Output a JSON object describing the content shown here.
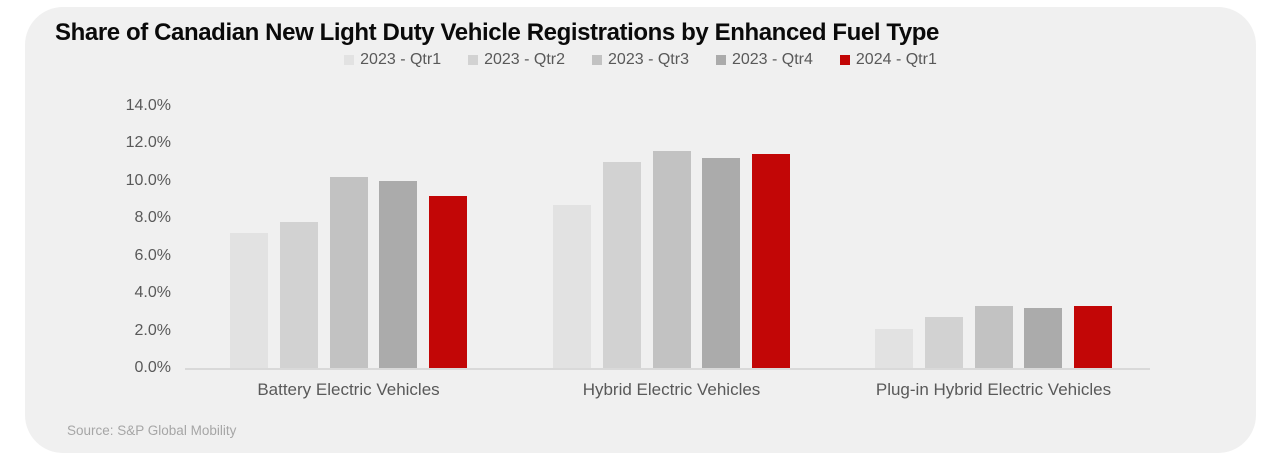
{
  "title": "Share of Canadian New Light Duty Vehicle Registrations by Enhanced Fuel Type",
  "source": "Source: S&P Global Mobility",
  "colors": {
    "page_background": "#ffffff",
    "card_background": "#f0f0f0",
    "axis_line": "#d9d9d9",
    "title_text": "#0a0a0a",
    "secondary_text": "#595959",
    "source_text": "#a6a6a6",
    "highlight_red": "#c20606"
  },
  "chart_data": {
    "type": "bar",
    "title": "Share of Canadian New Light Duty Vehicle Registrations by Enhanced Fuel Type",
    "categories": [
      "Battery Electric Vehicles",
      "Hybrid Electric Vehicles",
      "Plug-in Hybrid Electric Vehicles"
    ],
    "series": [
      {
        "name": "2023 - Qtr1",
        "color": "#e2e2e2",
        "values": [
          7.2,
          8.7,
          2.1
        ]
      },
      {
        "name": "2023 - Qtr2",
        "color": "#d2d2d2",
        "values": [
          7.8,
          11.0,
          2.7
        ]
      },
      {
        "name": "2023 - Qtr3",
        "color": "#c2c2c2",
        "values": [
          10.2,
          11.6,
          3.3
        ]
      },
      {
        "name": "2023 - Qtr4",
        "color": "#ababab",
        "values": [
          10.0,
          11.2,
          3.2
        ]
      },
      {
        "name": "2024 - Qtr1",
        "color": "#c20606",
        "values": [
          9.2,
          11.4,
          3.3
        ]
      }
    ],
    "xlabel": "",
    "ylabel": "",
    "ylim": [
      0,
      14
    ],
    "ytick_step": 2,
    "yticks": [
      "0.0%",
      "2.0%",
      "4.0%",
      "6.0%",
      "8.0%",
      "10.0%",
      "12.0%",
      "14.0%"
    ],
    "grid": false,
    "legend_position": "top"
  }
}
